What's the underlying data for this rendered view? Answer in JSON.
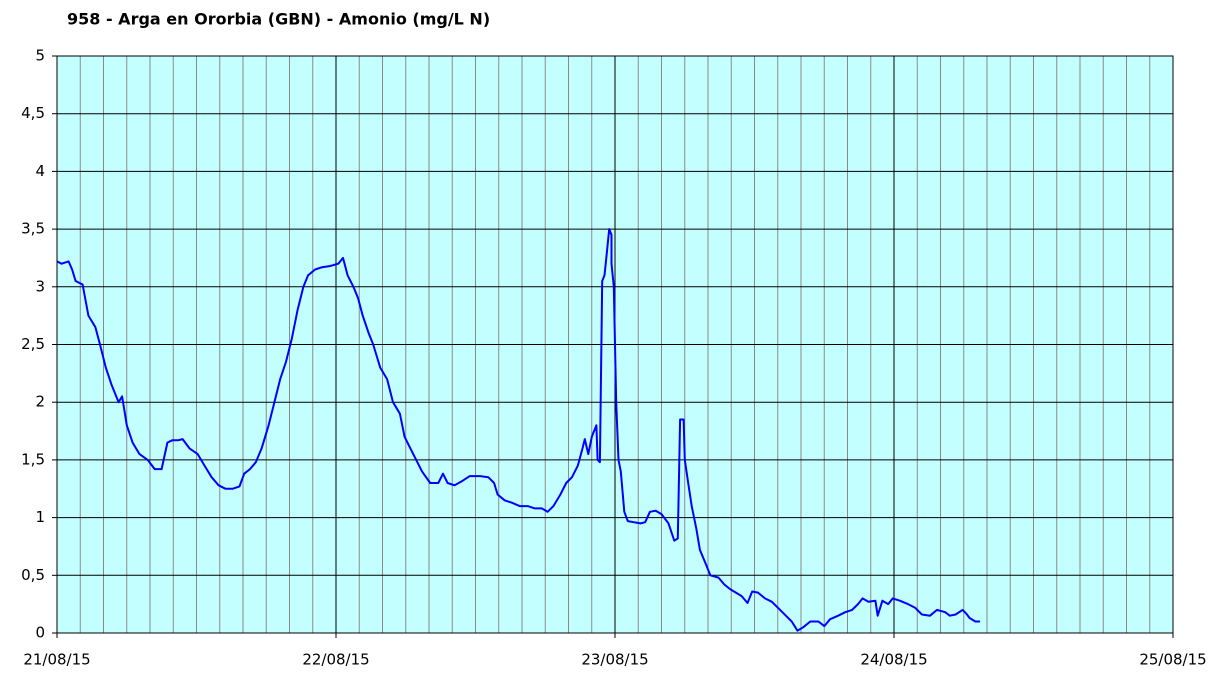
{
  "chart_data": {
    "type": "line",
    "title": "958 - Arga en Ororbia (GBN) - Amonio (mg/L N)",
    "color": "#0000ff",
    "plot_background": "#c4ffff",
    "grid": true,
    "x_minor_step": 2,
    "xlim": [
      0,
      96
    ],
    "xticks": [
      {
        "value": 0,
        "label": "21/08/15"
      },
      {
        "value": 24,
        "label": "22/08/15"
      },
      {
        "value": 48,
        "label": "23/08/15"
      },
      {
        "value": 72,
        "label": "24/08/15"
      },
      {
        "value": 96,
        "label": "25/08/15"
      }
    ],
    "ylim": [
      0,
      5
    ],
    "yticks": [
      0,
      {
        "value": 0.5,
        "label": "0,5"
      },
      1,
      {
        "value": 1.5,
        "label": "1,5"
      },
      2,
      {
        "value": 2.5,
        "label": "2,5"
      },
      3,
      {
        "value": 3.5,
        "label": "3,5"
      },
      4,
      {
        "value": 4.5,
        "label": "4,5"
      },
      5
    ],
    "x": [
      0,
      0.4,
      1.0,
      1.3,
      1.6,
      2.2,
      2.7,
      3.3,
      3.7,
      4.2,
      4.7,
      5.3,
      5.6,
      6.0,
      6.5,
      7.1,
      7.8,
      8.4,
      9.0,
      9.5,
      9.9,
      10.4,
      10.8,
      11.4,
      12.1,
      12.7,
      13.3,
      13.9,
      14.5,
      15.1,
      15.7,
      16.1,
      16.6,
      17.1,
      17.6,
      18.2,
      18.7,
      19.2,
      19.7,
      20.2,
      20.7,
      21.2,
      21.6,
      22.2,
      22.8,
      23.5,
      24.2,
      24.6,
      25.0,
      25.5,
      25.9,
      26.3,
      26.8,
      27.2,
      27.8,
      28.4,
      28.9,
      29.5,
      29.9,
      30.4,
      30.9,
      31.4,
      32.1,
      32.8,
      33.2,
      33.6,
      34.2,
      34.9,
      35.5,
      36.4,
      37.1,
      37.6,
      37.9,
      38.5,
      39.1,
      39.8,
      40.5,
      41.1,
      41.7,
      42.2,
      42.7,
      43.3,
      43.8,
      44.3,
      44.8,
      45.2,
      45.4,
      45.7,
      46.0,
      46.4,
      46.5,
      46.7,
      46.9,
      47.1,
      47.3,
      47.5,
      47.7,
      47.7,
      47.9,
      48.1,
      48.3,
      48.5,
      48.8,
      49.1,
      49.6,
      50.2,
      50.6,
      51.0,
      51.5,
      52.0,
      52.6,
      53.1,
      53.4,
      53.6,
      53.9,
      54.0,
      54.3,
      54.6,
      55.0,
      55.3,
      55.8,
      56.2,
      56.9,
      57.4,
      57.9,
      58.4,
      58.9,
      59.4,
      59.8,
      60.3,
      60.9,
      61.5,
      62.2,
      62.7,
      63.2,
      63.7,
      64.2,
      64.8,
      65.5,
      66.0,
      66.5,
      67.2,
      67.8,
      68.4,
      68.9,
      69.3,
      69.8,
      70.4,
      70.6,
      71.0,
      71.5,
      71.9,
      72.5,
      73.2,
      73.8,
      74.4,
      75.1,
      75.7,
      76.4,
      76.8,
      77.3,
      77.9,
      78.2,
      78.5,
      79.0,
      79.4
    ],
    "values": [
      3.22,
      3.2,
      3.22,
      3.15,
      3.05,
      3.02,
      2.75,
      2.65,
      2.5,
      2.3,
      2.15,
      2.0,
      2.05,
      1.8,
      1.65,
      1.55,
      1.5,
      1.42,
      1.42,
      1.65,
      1.67,
      1.67,
      1.68,
      1.6,
      1.55,
      1.45,
      1.35,
      1.28,
      1.25,
      1.25,
      1.27,
      1.38,
      1.42,
      1.48,
      1.6,
      1.8,
      2.0,
      2.2,
      2.35,
      2.55,
      2.8,
      3.0,
      3.1,
      3.15,
      3.17,
      3.18,
      3.2,
      3.25,
      3.1,
      3.0,
      2.9,
      2.75,
      2.6,
      2.5,
      2.3,
      2.2,
      2.0,
      1.9,
      1.7,
      1.6,
      1.5,
      1.4,
      1.3,
      1.3,
      1.38,
      1.3,
      1.28,
      1.32,
      1.36,
      1.36,
      1.35,
      1.3,
      1.2,
      1.15,
      1.13,
      1.1,
      1.1,
      1.08,
      1.08,
      1.05,
      1.1,
      1.2,
      1.3,
      1.35,
      1.45,
      1.6,
      1.68,
      1.55,
      1.7,
      1.8,
      1.5,
      1.48,
      3.05,
      3.1,
      3.3,
      3.5,
      3.45,
      3.2,
      3.0,
      2.0,
      1.5,
      1.4,
      1.05,
      0.97,
      0.96,
      0.95,
      0.96,
      1.05,
      1.06,
      1.03,
      0.95,
      0.8,
      0.82,
      1.85,
      1.85,
      1.5,
      1.3,
      1.1,
      0.9,
      0.72,
      0.6,
      0.5,
      0.48,
      0.42,
      0.38,
      0.35,
      0.32,
      0.26,
      0.36,
      0.35,
      0.3,
      0.27,
      0.2,
      0.15,
      0.1,
      0.02,
      0.05,
      0.1,
      0.1,
      0.06,
      0.12,
      0.15,
      0.18,
      0.2,
      0.25,
      0.3,
      0.27,
      0.28,
      0.15,
      0.28,
      0.25,
      0.3,
      0.28,
      0.25,
      0.22,
      0.16,
      0.15,
      0.2,
      0.18,
      0.15,
      0.16,
      0.2,
      0.17,
      0.13,
      0.1,
      0.1
    ]
  }
}
